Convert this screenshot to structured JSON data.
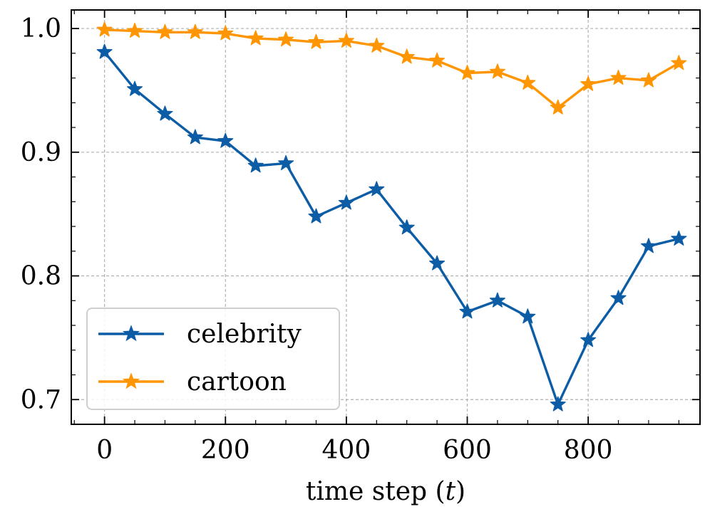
{
  "chart_data": {
    "type": "line",
    "title": "",
    "xlabel": "time step (t)",
    "ylabel": "",
    "xlim": [
      -55,
      985
    ],
    "ylim": [
      0.68,
      1.015
    ],
    "xticks": [
      0,
      200,
      400,
      600,
      800
    ],
    "xtick_labels": [
      "0",
      "200",
      "400",
      "600",
      "800"
    ],
    "yticks": [
      0.7,
      0.8,
      0.9,
      1.0
    ],
    "ytick_labels": [
      "0.7",
      "0.8",
      "0.9",
      "1.0"
    ],
    "x": [
      0,
      50,
      100,
      150,
      200,
      250,
      300,
      350,
      400,
      450,
      500,
      550,
      600,
      650,
      700,
      750,
      800,
      850,
      900,
      950
    ],
    "grid": true,
    "legend_position": "bottom-left",
    "series": [
      {
        "name": "celebrity",
        "color": "#0C5DA5",
        "marker": "star",
        "values": [
          0.981,
          0.951,
          0.931,
          0.912,
          0.909,
          0.889,
          0.891,
          0.848,
          0.859,
          0.87,
          0.839,
          0.81,
          0.771,
          0.78,
          0.767,
          0.696,
          0.748,
          0.782,
          0.824,
          0.83
        ]
      },
      {
        "name": "cartoon",
        "color": "#FF9500",
        "marker": "star",
        "values": [
          0.999,
          0.998,
          0.997,
          0.997,
          0.996,
          0.992,
          0.991,
          0.989,
          0.99,
          0.986,
          0.977,
          0.974,
          0.964,
          0.965,
          0.956,
          0.936,
          0.955,
          0.96,
          0.958,
          0.972
        ]
      }
    ]
  }
}
